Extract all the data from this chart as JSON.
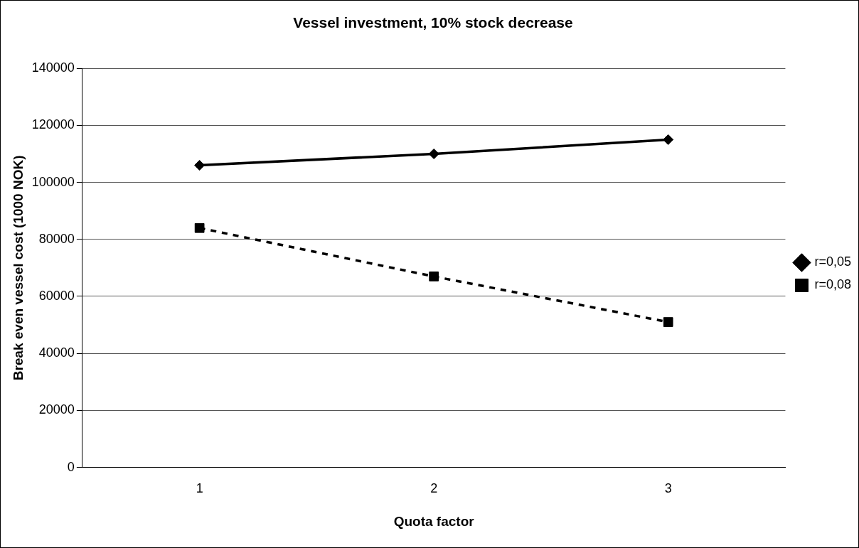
{
  "chart_data": {
    "type": "line",
    "title": "Vessel investment, 10% stock decrease",
    "xlabel": "Quota factor",
    "ylabel": "Break even vessel cost (1000 NOK)",
    "categories": [
      "1",
      "2",
      "3"
    ],
    "series": [
      {
        "name": "r=0,05",
        "color": "#000000",
        "values": [
          106000,
          110000,
          115000
        ],
        "marker": "diamond",
        "line_style": "solid"
      },
      {
        "name": "r=0,08",
        "color": "#000000",
        "values": [
          84000,
          67000,
          51000
        ],
        "marker": "square",
        "line_style": "dashed"
      }
    ],
    "ylim": [
      0,
      140000
    ],
    "yticks": [
      0,
      20000,
      40000,
      60000,
      80000,
      100000,
      120000,
      140000
    ],
    "grid": "y",
    "legend": "right"
  }
}
